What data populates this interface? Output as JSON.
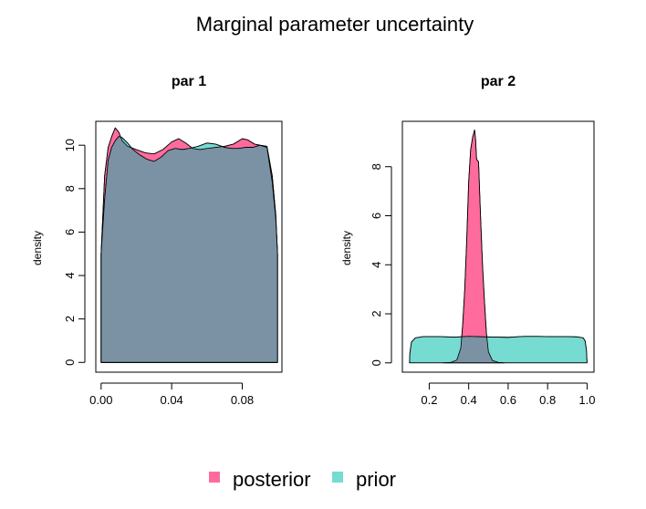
{
  "title": "Marginal parameter uncertainty",
  "colors": {
    "posterior": "#ff6b9d",
    "prior": "#76dbd1",
    "overlap": "#7a92a4",
    "frame": "#000000"
  },
  "legend": {
    "position": "bottom-center",
    "items": [
      {
        "label": "posterior",
        "color": "#ff6b9d"
      },
      {
        "label": "prior",
        "color": "#76dbd1"
      }
    ]
  },
  "chart_data": [
    {
      "type": "area",
      "title": "par 1",
      "xlabel": "",
      "ylabel": "density",
      "xlim": [
        -0.003,
        0.1025
      ],
      "ylim": [
        -0.45,
        11.1
      ],
      "xticks": [
        0.0,
        0.04,
        0.08
      ],
      "xtick_labels": [
        "0.00",
        "0.04",
        "0.08"
      ],
      "yticks": [
        0,
        2,
        4,
        6,
        8,
        10
      ],
      "ytick_labels": [
        "0",
        "2",
        "4",
        "6",
        "8",
        "10"
      ],
      "series": [
        {
          "name": "posterior",
          "role": "posterior",
          "points": [
            [
              0.0,
              5.0
            ],
            [
              0.002,
              8.6
            ],
            [
              0.004,
              9.9
            ],
            [
              0.006,
              10.4
            ],
            [
              0.008,
              10.8
            ],
            [
              0.01,
              10.6
            ],
            [
              0.012,
              10.2
            ],
            [
              0.015,
              9.95
            ],
            [
              0.02,
              9.8
            ],
            [
              0.025,
              9.65
            ],
            [
              0.03,
              9.6
            ],
            [
              0.035,
              9.8
            ],
            [
              0.04,
              10.15
            ],
            [
              0.044,
              10.3
            ],
            [
              0.048,
              10.1
            ],
            [
              0.052,
              9.85
            ],
            [
              0.056,
              9.8
            ],
            [
              0.06,
              9.85
            ],
            [
              0.065,
              9.9
            ],
            [
              0.07,
              9.95
            ],
            [
              0.075,
              10.05
            ],
            [
              0.08,
              10.3
            ],
            [
              0.083,
              10.25
            ],
            [
              0.087,
              10.05
            ],
            [
              0.09,
              10.0
            ],
            [
              0.094,
              9.95
            ],
            [
              0.097,
              8.6
            ],
            [
              0.099,
              6.8
            ],
            [
              0.1,
              5.0
            ]
          ]
        },
        {
          "name": "prior",
          "role": "prior",
          "points": [
            [
              0.0,
              5.0
            ],
            [
              0.002,
              7.5
            ],
            [
              0.004,
              9.3
            ],
            [
              0.006,
              9.9
            ],
            [
              0.008,
              10.2
            ],
            [
              0.01,
              10.4
            ],
            [
              0.012,
              10.35
            ],
            [
              0.015,
              10.1
            ],
            [
              0.018,
              9.8
            ],
            [
              0.022,
              9.55
            ],
            [
              0.026,
              9.35
            ],
            [
              0.03,
              9.25
            ],
            [
              0.034,
              9.45
            ],
            [
              0.038,
              9.75
            ],
            [
              0.042,
              9.85
            ],
            [
              0.046,
              9.8
            ],
            [
              0.05,
              9.85
            ],
            [
              0.055,
              9.95
            ],
            [
              0.06,
              10.1
            ],
            [
              0.065,
              10.05
            ],
            [
              0.07,
              9.9
            ],
            [
              0.074,
              9.85
            ],
            [
              0.078,
              9.85
            ],
            [
              0.082,
              9.9
            ],
            [
              0.086,
              9.9
            ],
            [
              0.09,
              10.0
            ],
            [
              0.094,
              9.9
            ],
            [
              0.097,
              8.3
            ],
            [
              0.099,
              6.6
            ],
            [
              0.1,
              5.0
            ]
          ]
        }
      ]
    },
    {
      "type": "area",
      "title": "par 2",
      "xlabel": "",
      "ylabel": "density",
      "xlim": [
        0.064,
        1.035
      ],
      "ylim": [
        -0.38,
        9.85
      ],
      "xticks": [
        0.2,
        0.4,
        0.6,
        0.8,
        1.0
      ],
      "xtick_labels": [
        "0.2",
        "0.4",
        "0.6",
        "0.8",
        "1.0"
      ],
      "yticks": [
        0,
        2,
        4,
        6,
        8
      ],
      "ytick_labels": [
        "0",
        "2",
        "4",
        "6",
        "8"
      ],
      "series": [
        {
          "name": "posterior",
          "role": "posterior",
          "points": [
            [
              0.27,
              0.0
            ],
            [
              0.31,
              0.02
            ],
            [
              0.34,
              0.12
            ],
            [
              0.36,
              0.6
            ],
            [
              0.37,
              1.6
            ],
            [
              0.38,
              3.0
            ],
            [
              0.39,
              5.0
            ],
            [
              0.4,
              7.4
            ],
            [
              0.41,
              8.7
            ],
            [
              0.42,
              9.2
            ],
            [
              0.43,
              9.5
            ],
            [
              0.435,
              9.1
            ],
            [
              0.44,
              8.3
            ],
            [
              0.45,
              8.2
            ],
            [
              0.46,
              6.0
            ],
            [
              0.47,
              4.0
            ],
            [
              0.48,
              2.5
            ],
            [
              0.49,
              1.2
            ],
            [
              0.5,
              0.45
            ],
            [
              0.52,
              0.1
            ],
            [
              0.55,
              0.02
            ],
            [
              0.58,
              0.0
            ]
          ]
        },
        {
          "name": "prior",
          "role": "prior",
          "points": [
            [
              0.1,
              0.0
            ],
            [
              0.102,
              0.4
            ],
            [
              0.11,
              0.85
            ],
            [
              0.13,
              1.02
            ],
            [
              0.17,
              1.07
            ],
            [
              0.25,
              1.07
            ],
            [
              0.33,
              1.05
            ],
            [
              0.4,
              1.08
            ],
            [
              0.48,
              1.06
            ],
            [
              0.55,
              1.05
            ],
            [
              0.6,
              1.04
            ],
            [
              0.68,
              1.08
            ],
            [
              0.75,
              1.08
            ],
            [
              0.82,
              1.07
            ],
            [
              0.9,
              1.07
            ],
            [
              0.95,
              1.06
            ],
            [
              0.98,
              1.02
            ],
            [
              0.99,
              0.9
            ],
            [
              0.997,
              0.5
            ],
            [
              1.0,
              0.0
            ]
          ]
        }
      ]
    }
  ]
}
